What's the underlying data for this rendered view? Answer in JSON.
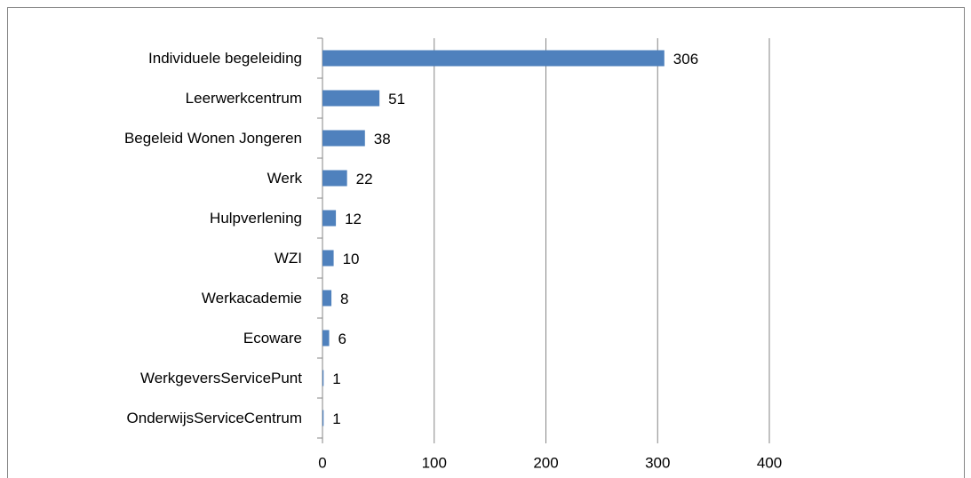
{
  "chart_data": {
    "type": "bar",
    "orientation": "horizontal",
    "categories": [
      "Individuele begeleiding",
      "Leerwerkcentrum",
      "Begeleid Wonen Jongeren",
      "Werk",
      "Hulpverlening",
      "WZI",
      "Werkacademie",
      "Ecoware",
      "WerkgeversServicePunt",
      "OnderwijsServiceCentrum"
    ],
    "values": [
      306,
      51,
      38,
      22,
      12,
      10,
      8,
      6,
      1,
      1
    ],
    "color": "#4f81bd",
    "xlim": [
      0,
      400
    ],
    "xticks": [
      0,
      100,
      200,
      300,
      400
    ],
    "grid": true
  }
}
